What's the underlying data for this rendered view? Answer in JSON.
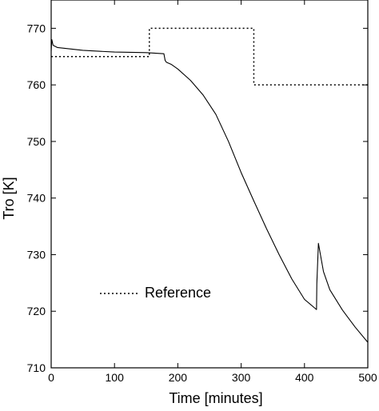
{
  "chart_data": {
    "type": "line",
    "xlabel": "Time [minutes]",
    "ylabel": "Tro [K]",
    "xlim": [
      0,
      500
    ],
    "ylim": [
      710,
      775
    ],
    "x_ticks": [
      0,
      100,
      200,
      300,
      400,
      500
    ],
    "y_ticks": [
      710,
      720,
      730,
      740,
      750,
      760,
      770
    ],
    "grid": false,
    "legend_position": "lower-left",
    "series": [
      {
        "name": "",
        "style": "solid",
        "color": "#000000",
        "x": [
          0,
          1,
          3,
          10,
          50,
          100,
          150,
          178,
          180,
          182,
          190,
          200,
          220,
          240,
          260,
          280,
          300,
          320,
          340,
          360,
          380,
          400,
          419,
          419.5,
          422,
          430,
          440,
          460,
          480,
          500
        ],
        "y": [
          766,
          768,
          767,
          766.6,
          766.1,
          765.8,
          765.7,
          765.5,
          764.3,
          764,
          763.6,
          762.8,
          760.8,
          758.2,
          754.8,
          750,
          744.5,
          739.5,
          734.6,
          730,
          725.7,
          722.1,
          720.3,
          724.8,
          732,
          727,
          723.8,
          720.2,
          717.2,
          714.5
        ]
      },
      {
        "name": "Reference",
        "style": "dotted",
        "color": "#000000",
        "x": [
          0,
          155,
          155,
          320,
          320,
          500
        ],
        "y": [
          765,
          765,
          770,
          770,
          760,
          760
        ]
      }
    ]
  }
}
